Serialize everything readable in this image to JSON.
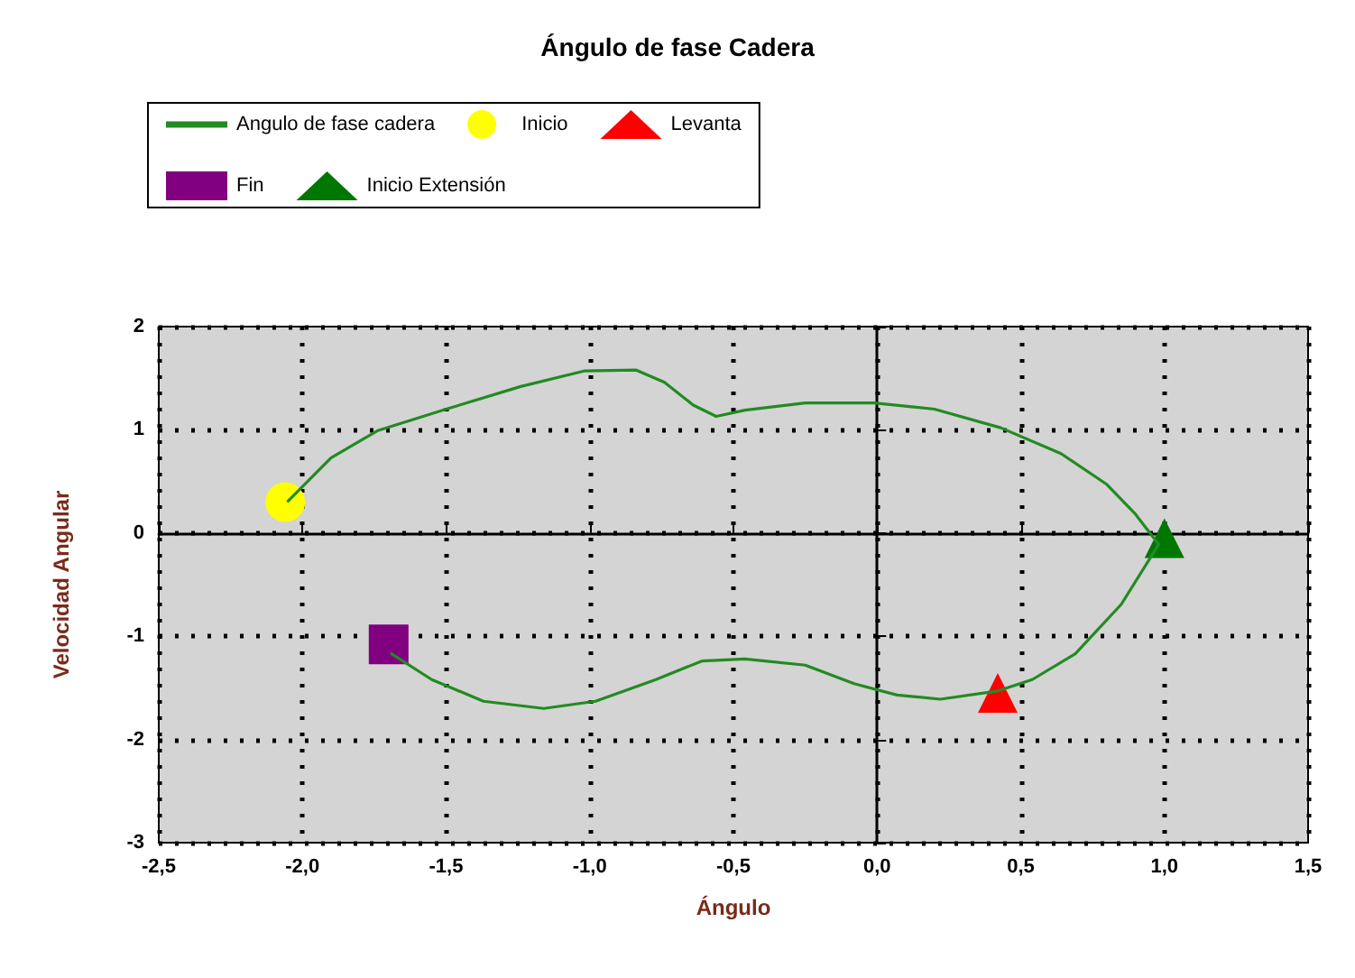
{
  "chart_data": {
    "type": "line",
    "title": "Ángulo de fase Cadera",
    "xlabel": "Ángulo",
    "ylabel": "Velocidad Angular",
    "xlim": [
      -2.5,
      1.5
    ],
    "xticks": [
      {
        "value": -2.5,
        "label": "-2,5"
      },
      {
        "value": -2,
        "label": "-2,0"
      },
      {
        "value": -1.5,
        "label": "-1,5"
      },
      {
        "value": -1,
        "label": "-1,0"
      },
      {
        "value": -0.5,
        "label": "-0,5"
      },
      {
        "value": 0,
        "label": "0,0"
      },
      {
        "value": 0.5,
        "label": "0,5"
      },
      {
        "value": 1,
        "label": "1,0"
      },
      {
        "value": 1.5,
        "label": "1,5"
      }
    ],
    "ylim": [
      -3,
      2
    ],
    "yticks": [
      -3,
      -2,
      -1,
      0,
      1,
      2
    ],
    "grid": true,
    "legend": "top",
    "series": [
      {
        "name": "Angulo de fase cadera",
        "color": "#228b22",
        "marker": "none",
        "line_style": "solid",
        "x": [
          -2.05,
          -1.9,
          -1.74,
          -1.5,
          -1.24,
          -1.02,
          -0.84,
          -0.74,
          -0.64,
          -0.56,
          -0.46,
          -0.25,
          -0.01,
          0.2,
          0.43,
          0.64,
          0.8,
          0.9,
          0.98,
          0.85,
          0.69,
          0.54,
          0.42,
          0.22,
          0.07,
          -0.08,
          -0.25,
          -0.46,
          -0.61,
          -0.77,
          -0.98,
          -1.16,
          -1.37,
          -1.55,
          -1.69
        ],
        "values": [
          0.31,
          0.73,
          0.99,
          1.2,
          1.42,
          1.57,
          1.58,
          1.46,
          1.24,
          1.13,
          1.19,
          1.26,
          1.26,
          1.2,
          1.02,
          0.77,
          0.47,
          0.18,
          -0.11,
          -0.69,
          -1.17,
          -1.42,
          -1.53,
          -1.61,
          -1.57,
          -1.46,
          -1.28,
          -1.22,
          -1.24,
          -1.42,
          -1.63,
          -1.7,
          -1.63,
          -1.42,
          -1.17
        ]
      },
      {
        "name": "Inicio",
        "type": "scatter",
        "color": "#ffff00",
        "marker": "circle",
        "x": [
          -2.06
        ],
        "values": [
          0.3
        ]
      },
      {
        "name": "Levanta",
        "type": "scatter",
        "color": "#ff0000",
        "marker": "triangle",
        "x": [
          0.42
        ],
        "values": [
          -1.55
        ]
      },
      {
        "name": "Fin",
        "type": "scatter",
        "color": "#800080",
        "marker": "square",
        "x": [
          -1.7
        ],
        "values": [
          -1.08
        ]
      },
      {
        "name": "Inicio Extensión",
        "type": "scatter",
        "color": "#007700",
        "marker": "triangle",
        "x": [
          1.0
        ],
        "values": [
          -0.05
        ]
      }
    ]
  }
}
